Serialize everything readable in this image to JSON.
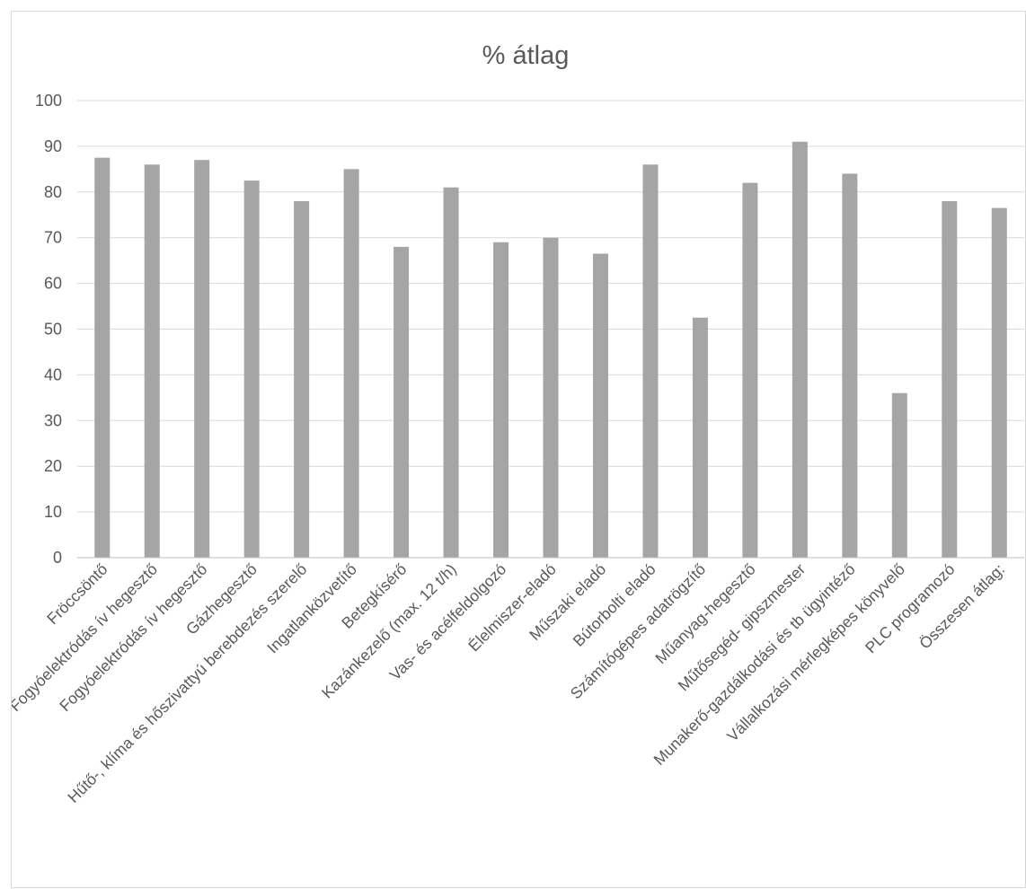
{
  "chart_data": {
    "type": "bar",
    "title": "% átlag",
    "xlabel": "",
    "ylabel": "",
    "ylim": [
      0,
      100
    ],
    "yticks": [
      "0",
      "10",
      "20",
      "30",
      "40",
      "50",
      "60",
      "70",
      "80",
      "90",
      "100"
    ],
    "grid": true,
    "legend": "none",
    "bar_color": "#a5a5a5",
    "categories": [
      "Fröccsöntő",
      "Fogyóelektródás ív hegesztő",
      "Fogyóelektródás ív hegesztő",
      "Gázhegesztő",
      "Hűtő-, klíma és hőszivattyú berebdezés szerelő",
      "Ingatlanközvetítő",
      "Betegkísérő",
      "Kazánkezelő (max. 12 t/h)",
      "Vas- és acélfeldolgozó",
      "Élelmiszer-eladó",
      "Műszaki eladó",
      "Bútorbolti eladó",
      "Számítógépes adatrögzítő",
      "Műanyag-hegesztő",
      "Műtősegéd- gipszmester",
      "Munakerő-gazdálkodási és tb ügyintéző",
      "Vállalkozási mérlegképes könyvelő",
      "PLC programozó",
      "Összesen átlag:"
    ],
    "values": [
      87.5,
      86,
      87,
      82.5,
      78,
      85,
      68,
      81,
      69,
      70,
      66.5,
      86,
      52.5,
      82,
      91,
      84,
      36,
      78,
      76.5
    ]
  }
}
